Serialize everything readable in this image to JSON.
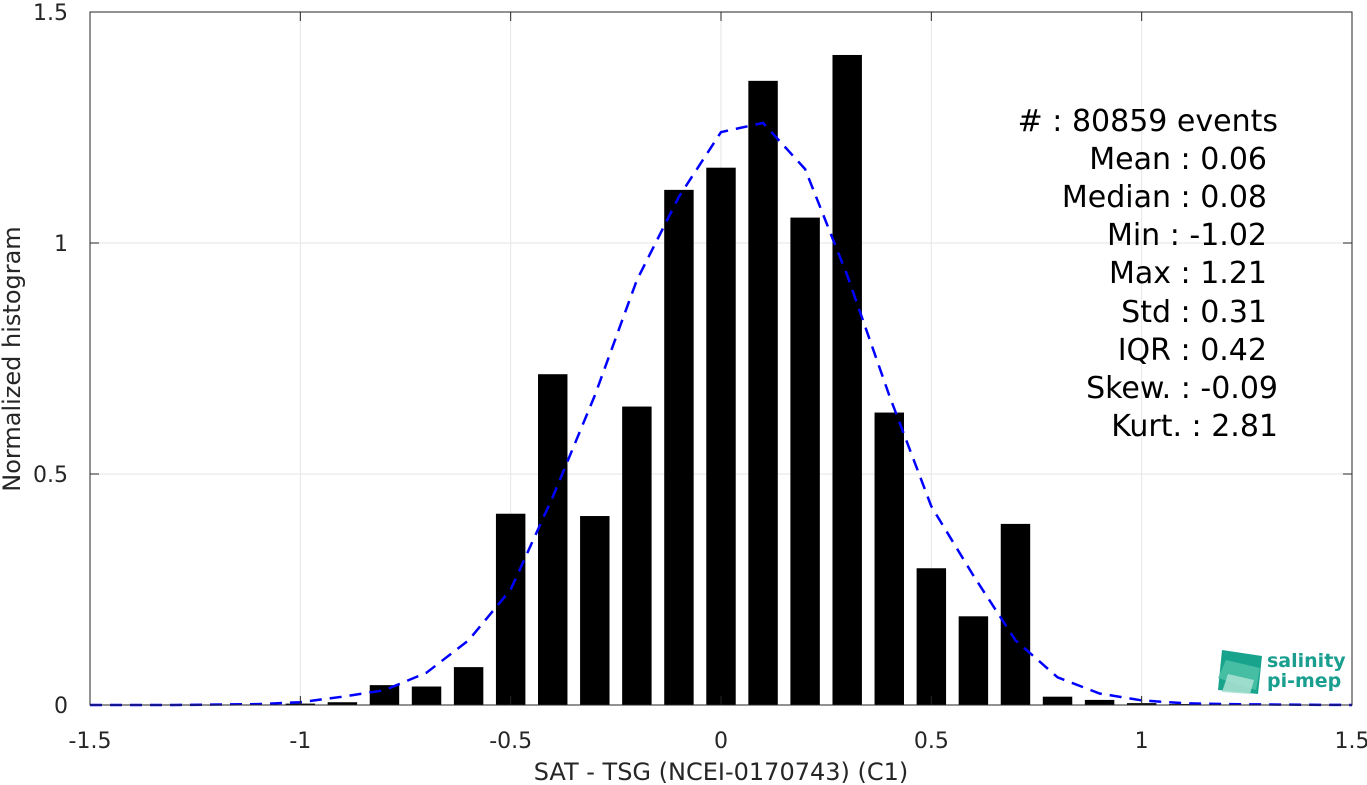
{
  "chart_data": {
    "type": "bar",
    "title": "",
    "xlabel": "SAT - TSG (NCEI-0170743) (C1)",
    "ylabel": "Normalized histogram",
    "xlim": [
      -1.5,
      1.5
    ],
    "ylim": [
      0,
      1.5
    ],
    "grid": true,
    "xticks": [
      -1.5,
      -1,
      -0.5,
      0,
      0.5,
      1,
      1.5
    ],
    "xtick_labels": [
      "-1.5",
      "-1",
      "-0.5",
      "0",
      "0.5",
      "1",
      "1.5"
    ],
    "yticks": [
      0,
      0.5,
      1,
      1.5
    ],
    "ytick_labels": [
      "0",
      "0.5",
      "1",
      "1.5"
    ],
    "bar_color": "#000000",
    "bin_width": 0.1,
    "bar_width_fraction": 0.7,
    "bins": [
      {
        "x": -1.0,
        "value": 0.003
      },
      {
        "x": -0.9,
        "value": 0.006
      },
      {
        "x": -0.8,
        "value": 0.043
      },
      {
        "x": -0.7,
        "value": 0.04
      },
      {
        "x": -0.6,
        "value": 0.082
      },
      {
        "x": -0.5,
        "value": 0.414
      },
      {
        "x": -0.4,
        "value": 0.716
      },
      {
        "x": -0.3,
        "value": 0.409
      },
      {
        "x": -0.2,
        "value": 0.646
      },
      {
        "x": -0.1,
        "value": 1.115
      },
      {
        "x": 0.0,
        "value": 1.163
      },
      {
        "x": 0.1,
        "value": 1.351
      },
      {
        "x": 0.2,
        "value": 1.055
      },
      {
        "x": 0.3,
        "value": 1.407
      },
      {
        "x": 0.4,
        "value": 0.633
      },
      {
        "x": 0.5,
        "value": 0.296
      },
      {
        "x": 0.6,
        "value": 0.192
      },
      {
        "x": 0.7,
        "value": 0.392
      },
      {
        "x": 0.8,
        "value": 0.018
      },
      {
        "x": 0.9,
        "value": 0.011
      },
      {
        "x": 1.0,
        "value": 0.004
      },
      {
        "x": 1.1,
        "value": 0.002
      },
      {
        "x": 1.2,
        "value": 0.001
      }
    ],
    "fit_curve": {
      "style": "dashed",
      "color": "#0000ff",
      "x": [
        -1.5,
        -1.3,
        -1.1,
        -1.0,
        -0.9,
        -0.8,
        -0.7,
        -0.6,
        -0.5,
        -0.4,
        -0.3,
        -0.2,
        -0.1,
        0.0,
        0.05,
        0.1,
        0.2,
        0.3,
        0.4,
        0.5,
        0.6,
        0.7,
        0.8,
        0.9,
        1.0,
        1.1,
        1.2,
        1.3,
        1.5
      ],
      "y": [
        0.0,
        0.0,
        0.002,
        0.006,
        0.018,
        0.032,
        0.07,
        0.14,
        0.25,
        0.45,
        0.67,
        0.92,
        1.1,
        1.24,
        1.25,
        1.26,
        1.16,
        0.93,
        0.67,
        0.43,
        0.28,
        0.14,
        0.06,
        0.025,
        0.01,
        0.004,
        0.002,
        0.001,
        0.0
      ]
    }
  },
  "stats": [
    {
      "label": "#  : 80859 events"
    },
    {
      "label": "Mean : 0.06"
    },
    {
      "label": "Median : 0.08"
    },
    {
      "label": "Min : -1.02"
    },
    {
      "label": "Max : 1.21"
    },
    {
      "label": "Std : 0.31"
    },
    {
      "label": "IQR : 0.42"
    },
    {
      "label": "Skew. : -0.09"
    },
    {
      "label": "Kurt. : 2.81"
    }
  ],
  "logo": {
    "line1": "salinity",
    "line2": "pi-mep",
    "colors": [
      "#17a38c",
      "#4fc3a8",
      "#a6e0d0"
    ]
  }
}
